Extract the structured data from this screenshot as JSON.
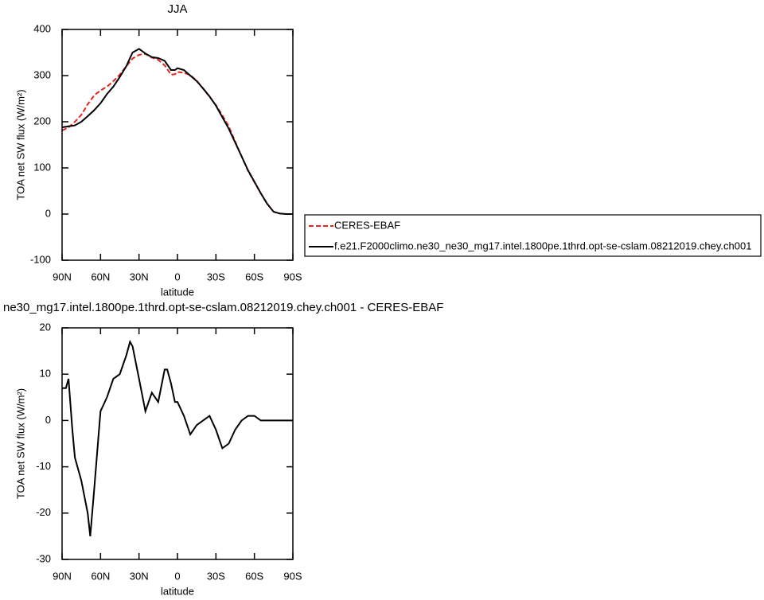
{
  "chart_data": [
    {
      "type": "line",
      "title": "JJA",
      "xlabel": "latitude",
      "ylabel": "TOA net SW flux (W/m²)",
      "x": [
        90,
        85,
        80,
        75,
        70,
        65,
        60,
        55,
        50,
        45,
        40,
        35,
        30,
        25,
        20,
        15,
        10,
        5,
        2,
        0,
        -5,
        -10,
        -15,
        -20,
        -25,
        -30,
        -35,
        -40,
        -45,
        -50,
        -55,
        -60,
        -65,
        -70,
        -75,
        -80,
        -85,
        -90
      ],
      "series": [
        {
          "name": "CERES-EBAF",
          "color": "#e8221c",
          "line_style": "dashed",
          "values": [
            181,
            188,
            200,
            215,
            238,
            257,
            268,
            276,
            288,
            302,
            320,
            337,
            345,
            347,
            339,
            334,
            322,
            302,
            303,
            308,
            306,
            301,
            289,
            272,
            254,
            236,
            214,
            190,
            157,
            125,
            94,
            69,
            45,
            22,
            5,
            1,
            0,
            0
          ]
        },
        {
          "name": "f.e21.F2000climo.ne30_ne30_mg17.intel.1800pe.1thrd.opt-se-cslam.08212019.chey.ch001",
          "color": "#000000",
          "line_style": "solid",
          "values": [
            188,
            190,
            192,
            200,
            212,
            225,
            240,
            260,
            276,
            297,
            320,
            350,
            358,
            348,
            340,
            338,
            332,
            312,
            312,
            316,
            312,
            300,
            288,
            272,
            255,
            235,
            210,
            185,
            155,
            125,
            95,
            70,
            45,
            22,
            5,
            1,
            0,
            0
          ]
        }
      ],
      "xlim": [
        90,
        -90
      ],
      "ylim": [
        -100,
        400
      ],
      "xticks": [
        {
          "value": 90,
          "label": "90N"
        },
        {
          "value": 60,
          "label": "60N"
        },
        {
          "value": 30,
          "label": "30N"
        },
        0,
        {
          "value": -30,
          "label": "30S"
        },
        {
          "value": -60,
          "label": "60S"
        },
        {
          "value": -90,
          "label": "90S"
        }
      ],
      "yticks": [
        -100,
        0,
        100,
        200,
        300,
        400
      ],
      "legend": "right"
    },
    {
      "type": "line",
      "title": "ne30_mg17.intel.1800pe.1thrd.opt-se-cslam.08212019.chey.ch001 - CERES-EBAF",
      "xlabel": "latitude",
      "ylabel": "TOA net SW flux (W/m²)",
      "x": [
        90,
        87,
        85,
        82,
        80,
        75,
        70,
        68,
        65,
        60,
        55,
        50,
        45,
        40,
        37,
        35,
        30,
        25,
        20,
        15,
        10,
        8,
        5,
        2,
        0,
        -5,
        -10,
        -15,
        -20,
        -25,
        -30,
        -35,
        -40,
        -45,
        -50,
        -55,
        -60,
        -65,
        -70,
        -75,
        -80,
        -85,
        -90
      ],
      "series": [
        {
          "name": null,
          "color": "#000000",
          "line_style": "solid",
          "values": [
            7,
            7,
            9,
            -2,
            -8,
            -13,
            -20,
            -25,
            -15,
            2,
            5,
            9,
            10,
            14,
            17,
            16,
            9,
            2,
            6,
            4,
            11,
            11,
            8,
            4,
            4,
            1,
            -3,
            -1,
            0,
            1,
            -2,
            -6,
            -5,
            -2,
            0,
            1,
            1,
            0,
            0,
            0,
            0,
            0,
            0
          ]
        }
      ],
      "xlim": [
        90,
        -90
      ],
      "ylim": [
        -30,
        20
      ],
      "xticks": [
        {
          "value": 90,
          "label": "90N"
        },
        {
          "value": 60,
          "label": "60N"
        },
        {
          "value": 30,
          "label": "30N"
        },
        0,
        {
          "value": -30,
          "label": "30S"
        },
        {
          "value": -60,
          "label": "60S"
        },
        {
          "value": -90,
          "label": "90S"
        }
      ],
      "yticks": [
        -30,
        -20,
        -10,
        0,
        10,
        20
      ]
    }
  ]
}
